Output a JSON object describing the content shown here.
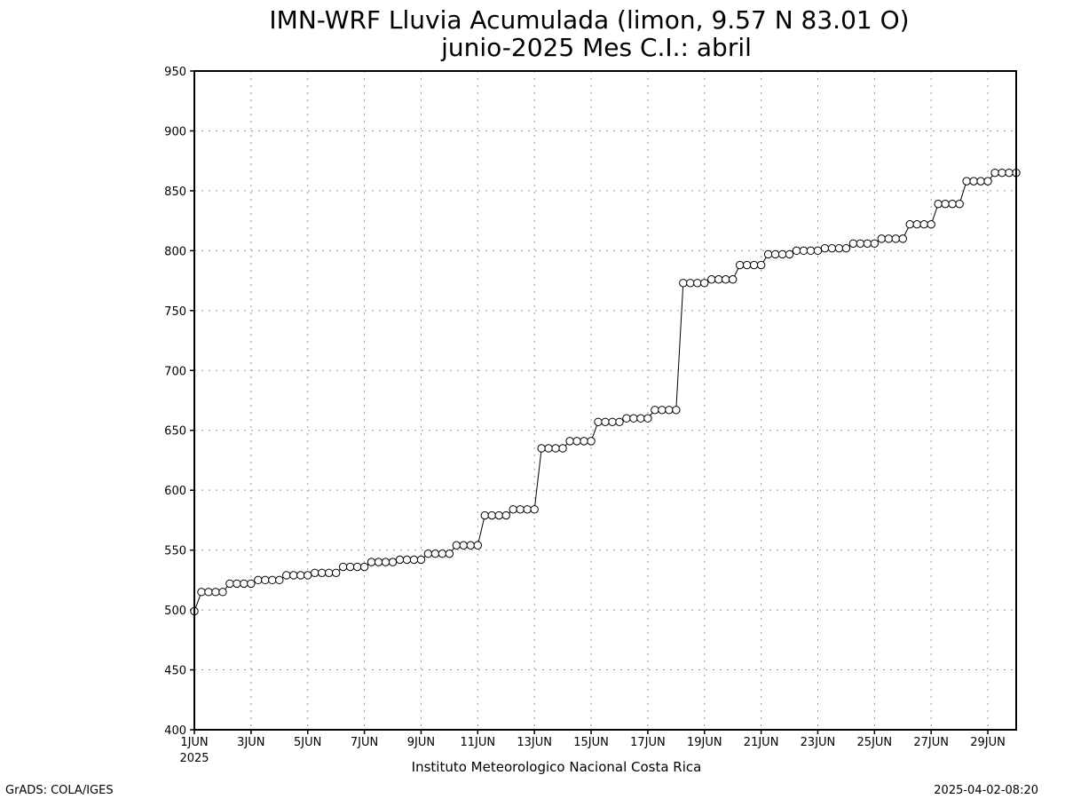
{
  "chart_data": {
    "type": "line",
    "title": "IMN-WRF  Lluvia Acumulada (limon, 9.57  N 83.01  O)",
    "subtitle": "junio-2025 Mes C.I.: abril",
    "ylim": [
      400,
      950
    ],
    "yticks": [
      400,
      450,
      500,
      550,
      600,
      650,
      700,
      750,
      800,
      850,
      900,
      950
    ],
    "xlim": [
      1,
      30
    ],
    "xticks": [
      {
        "day": 1,
        "label": "1JUN"
      },
      {
        "day": 3,
        "label": "3JUN"
      },
      {
        "day": 5,
        "label": "5JUN"
      },
      {
        "day": 7,
        "label": "7JUN"
      },
      {
        "day": 9,
        "label": "9JUN"
      },
      {
        "day": 11,
        "label": "11JUN"
      },
      {
        "day": 13,
        "label": "13JUN"
      },
      {
        "day": 15,
        "label": "15JUN"
      },
      {
        "day": 17,
        "label": "17JUN"
      },
      {
        "day": 19,
        "label": "19JUN"
      },
      {
        "day": 21,
        "label": "21JUN"
      },
      {
        "day": 23,
        "label": "23JUN"
      },
      {
        "day": 25,
        "label": "25JUN"
      },
      {
        "day": 27,
        "label": "27JUN"
      },
      {
        "day": 29,
        "label": "29JUN"
      }
    ],
    "year_label": "2025",
    "grid": true,
    "series": [
      {
        "x": [
          1,
          1.25,
          1.5,
          1.75,
          2,
          2.25,
          2.5,
          2.75,
          3,
          3.25,
          3.5,
          3.75,
          4,
          4.25,
          4.5,
          4.75,
          5,
          5.25,
          5.5,
          5.75,
          6,
          6.25,
          6.5,
          6.75,
          7,
          7.25,
          7.5,
          7.75,
          8,
          8.25,
          8.5,
          8.75,
          9,
          9.25,
          9.5,
          9.75,
          10,
          10.25,
          10.5,
          10.75,
          11,
          11.25,
          11.5,
          11.75,
          12,
          12.25,
          12.5,
          12.75,
          13,
          13.25,
          13.5,
          13.75,
          14,
          14.25,
          14.5,
          14.75,
          15,
          15.25,
          15.5,
          15.75,
          16,
          16.25,
          16.5,
          16.75,
          17,
          17.25,
          17.5,
          17.75,
          18,
          18.25,
          18.5,
          18.75,
          19,
          19.25,
          19.5,
          19.75,
          20,
          20.25,
          20.5,
          20.75,
          21,
          21.25,
          21.5,
          21.75,
          22,
          22.25,
          22.5,
          22.75,
          23,
          23.25,
          23.5,
          23.75,
          24,
          24.25,
          24.5,
          24.75,
          25,
          25.25,
          25.5,
          25.75,
          26,
          26.25,
          26.5,
          26.75,
          27,
          27.25,
          27.5,
          27.75,
          28,
          28.25,
          28.5,
          28.75,
          29,
          29.25,
          29.5,
          29.75,
          30
        ],
        "values": [
          499,
          515,
          515,
          515,
          515,
          522,
          522,
          522,
          522,
          525,
          525,
          525,
          525,
          529,
          529,
          529,
          529,
          531,
          531,
          531,
          531,
          536,
          536,
          536,
          536,
          540,
          540,
          540,
          540,
          542,
          542,
          542,
          542,
          547,
          547,
          547,
          547,
          554,
          554,
          554,
          554,
          579,
          579,
          579,
          579,
          584,
          584,
          584,
          584,
          635,
          635,
          635,
          635,
          641,
          641,
          641,
          641,
          657,
          657,
          657,
          657,
          660,
          660,
          660,
          660,
          667,
          667,
          667,
          667,
          773,
          773,
          773,
          773,
          776,
          776,
          776,
          776,
          788,
          788,
          788,
          788,
          797,
          797,
          797,
          797,
          800,
          800,
          800,
          800,
          802,
          802,
          802,
          802,
          806,
          806,
          806,
          806,
          810,
          810,
          810,
          810,
          822,
          822,
          822,
          822,
          839,
          839,
          839,
          839,
          858,
          858,
          858,
          858,
          865,
          865,
          865,
          865
        ]
      }
    ]
  },
  "footer": {
    "institution": "Instituto Meteorologico Nacional Costa Rica",
    "software": "GrADS: COLA/IGES",
    "timestamp": "2025-04-02-08:20"
  }
}
